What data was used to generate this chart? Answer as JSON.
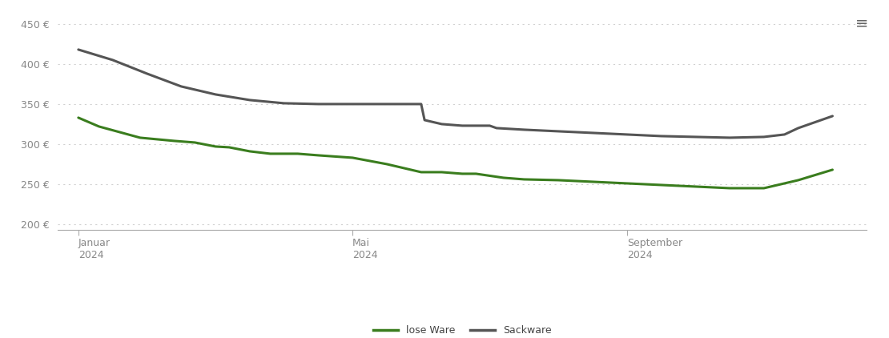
{
  "lose_ware_x": [
    0,
    0.3,
    0.9,
    1.4,
    1.7,
    2.0,
    2.2,
    2.5,
    2.8,
    3.2,
    3.5,
    4.0,
    4.5,
    5.0,
    5.3,
    5.6,
    5.8,
    6.2,
    6.5,
    7.0,
    7.5,
    8.0,
    8.5,
    9.0,
    9.5,
    10.0,
    10.5,
    11.0
  ],
  "lose_ware_y": [
    333,
    322,
    308,
    304,
    302,
    297,
    296,
    291,
    288,
    288,
    286,
    283,
    275,
    265,
    265,
    263,
    263,
    258,
    256,
    255,
    253,
    251,
    249,
    247,
    245,
    245,
    255,
    268
  ],
  "sackware_x": [
    0,
    0.5,
    1.0,
    1.5,
    2.0,
    2.5,
    3.0,
    3.5,
    4.0,
    4.5,
    4.8,
    5.0,
    5.05,
    5.3,
    5.6,
    6.0,
    6.1,
    6.5,
    7.0,
    7.5,
    8.0,
    8.5,
    9.0,
    9.5,
    10.0,
    10.3,
    10.5,
    11.0
  ],
  "sackware_y": [
    418,
    405,
    388,
    372,
    362,
    355,
    351,
    350,
    350,
    350,
    350,
    350,
    330,
    325,
    323,
    323,
    320,
    318,
    316,
    314,
    312,
    310,
    309,
    308,
    309,
    312,
    320,
    335
  ],
  "lose_ware_color": "#3a7d1e",
  "sackware_color": "#555555",
  "grid_color": "#d0d0d0",
  "background_color": "#ffffff",
  "yticks": [
    200,
    250,
    300,
    350,
    400,
    450
  ],
  "ylim": [
    193,
    463
  ],
  "xlim": [
    -0.3,
    11.5
  ],
  "xtick_positions": [
    0,
    4,
    8
  ],
  "xtick_labels": [
    "Januar\n2024",
    "Mai\n2024",
    "September\n2024"
  ],
  "legend_lose": "lose Ware",
  "legend_sack": "Sackware",
  "line_width": 2.2,
  "menu_icon_color": "#666666"
}
